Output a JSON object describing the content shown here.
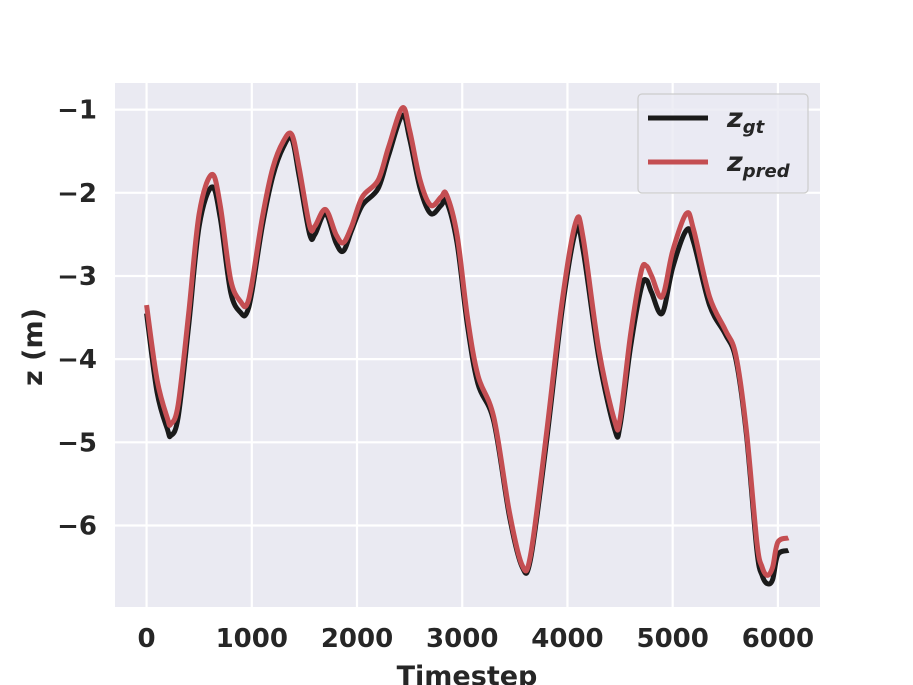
{
  "chart_data": {
    "type": "line",
    "xlabel": "Timestep",
    "ylabel": "z (m)",
    "xlim": [
      -300,
      6400
    ],
    "ylim": [
      -6.98,
      -0.68
    ],
    "x_ticks": [
      0,
      1000,
      2000,
      3000,
      4000,
      5000,
      6000
    ],
    "x_tick_labels": [
      "0",
      "1000",
      "2000",
      "3000",
      "4000",
      "5000",
      "6000"
    ],
    "y_ticks": [
      -1,
      -2,
      -3,
      -4,
      -5,
      -6
    ],
    "y_tick_labels": [
      "−1",
      "−2",
      "−3",
      "−4",
      "−5",
      "−6"
    ],
    "grid": true,
    "legend_position": "top-right",
    "background": "#eaeaf2",
    "series": [
      {
        "name": "z_gt",
        "legend_main": "z",
        "legend_sub": "gt",
        "color": "#1a1a1a",
        "x": [
          0,
          100,
          200,
          230,
          300,
          400,
          500,
          620,
          700,
          800,
          900,
          950,
          1000,
          1100,
          1200,
          1300,
          1380,
          1450,
          1550,
          1600,
          1700,
          1800,
          1870,
          1950,
          2050,
          2200,
          2300,
          2430,
          2500,
          2600,
          2700,
          2800,
          2850,
          2950,
          3050,
          3150,
          3300,
          3450,
          3570,
          3650,
          3800,
          3950,
          4080,
          4150,
          4300,
          4450,
          4500,
          4600,
          4700,
          4750,
          4800,
          4900,
          5000,
          5130,
          5200,
          5350,
          5500,
          5600,
          5700,
          5800,
          5850,
          5900,
          5950,
          6000,
          6100
        ],
        "values": [
          -3.45,
          -4.4,
          -4.85,
          -4.92,
          -4.7,
          -3.6,
          -2.4,
          -1.93,
          -2.3,
          -3.2,
          -3.45,
          -3.45,
          -3.2,
          -2.4,
          -1.8,
          -1.45,
          -1.35,
          -1.8,
          -2.5,
          -2.5,
          -2.25,
          -2.6,
          -2.7,
          -2.45,
          -2.15,
          -1.95,
          -1.55,
          -1.07,
          -1.35,
          -1.95,
          -2.25,
          -2.15,
          -2.1,
          -2.6,
          -3.6,
          -4.3,
          -4.75,
          -5.9,
          -6.5,
          -6.4,
          -5.0,
          -3.4,
          -2.45,
          -2.7,
          -4.0,
          -4.85,
          -4.8,
          -3.85,
          -3.15,
          -3.05,
          -3.2,
          -3.45,
          -2.9,
          -2.45,
          -2.6,
          -3.35,
          -3.7,
          -4.0,
          -4.9,
          -6.3,
          -6.6,
          -6.7,
          -6.65,
          -6.35,
          -6.3
        ]
      },
      {
        "name": "z_pred",
        "legend_main": "z",
        "legend_sub": "pred",
        "color": "#c44e52",
        "x": [
          0,
          100,
          200,
          230,
          300,
          400,
          500,
          620,
          700,
          800,
          900,
          950,
          1000,
          1100,
          1200,
          1300,
          1380,
          1450,
          1550,
          1600,
          1700,
          1800,
          1870,
          1950,
          2050,
          2200,
          2300,
          2430,
          2500,
          2600,
          2700,
          2800,
          2850,
          2950,
          3050,
          3150,
          3300,
          3450,
          3570,
          3650,
          3800,
          3950,
          4080,
          4150,
          4300,
          4450,
          4500,
          4600,
          4700,
          4750,
          4800,
          4900,
          5000,
          5130,
          5200,
          5350,
          5500,
          5600,
          5700,
          5800,
          5850,
          5900,
          5950,
          6000,
          6100
        ],
        "values": [
          -3.35,
          -4.25,
          -4.72,
          -4.78,
          -4.55,
          -3.45,
          -2.25,
          -1.78,
          -2.15,
          -3.05,
          -3.32,
          -3.35,
          -3.1,
          -2.3,
          -1.7,
          -1.38,
          -1.3,
          -1.7,
          -2.4,
          -2.4,
          -2.2,
          -2.5,
          -2.6,
          -2.4,
          -2.05,
          -1.85,
          -1.45,
          -0.98,
          -1.25,
          -1.85,
          -2.15,
          -2.05,
          -2.02,
          -2.5,
          -3.5,
          -4.2,
          -4.7,
          -5.85,
          -6.48,
          -6.35,
          -4.9,
          -3.3,
          -2.35,
          -2.55,
          -3.9,
          -4.75,
          -4.72,
          -3.7,
          -2.95,
          -2.88,
          -3.0,
          -3.25,
          -2.7,
          -2.25,
          -2.45,
          -3.25,
          -3.65,
          -3.95,
          -4.85,
          -6.2,
          -6.5,
          -6.6,
          -6.5,
          -6.2,
          -6.15
        ]
      }
    ]
  }
}
